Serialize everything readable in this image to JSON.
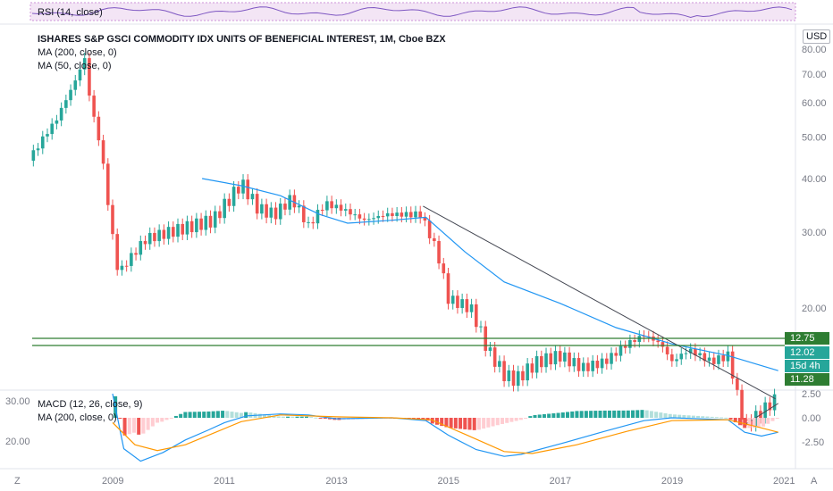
{
  "rsi_label": "RSI (14, close)",
  "main_title": "ISHARES S&P GSCI COMMODITY IDX UNITS OF BENEFICIAL INTEREST, 1M, Cboe BZX",
  "ma200_label": "MA (200, close, 0)",
  "ma50_label": "MA (50, close, 0)",
  "macd_label": "MACD (12, 26, close, 9)",
  "macd_ma_label": "MA (200, close, 0)",
  "currency": "USD",
  "corner_left": "Z",
  "corner_right": "A",
  "tags": [
    {
      "text": "12.75",
      "color": "#2e7d32"
    },
    {
      "text": "12.02",
      "color": "#26a69a"
    },
    {
      "text": "15d 4h",
      "color": "#26a69a"
    },
    {
      "text": "11.28",
      "color": "#2e7d32"
    }
  ],
  "colors": {
    "up": "#26a69a",
    "down": "#ef5350",
    "ma": "#2196f3",
    "signal": "#ff9800",
    "level": "#2e7d32"
  },
  "chart_data": {
    "type": "candlestick",
    "x_ticks": [
      "2009",
      "2011",
      "2013",
      "2015",
      "2017",
      "2019",
      "2021"
    ],
    "price_axis": {
      "ticks": [
        "80.00",
        "70.00",
        "60.00",
        "50.00",
        "40.00",
        "30.00",
        "20.00"
      ],
      "scale": "log"
    },
    "macd_axis": {
      "ticks": [
        "2.50",
        "0.00",
        "-2.50"
      ]
    },
    "macd_left_axis": {
      "ticks": [
        "30.00",
        "20.00"
      ]
    },
    "price_path": [
      [
        2007.5,
        44
      ],
      [
        2008.0,
        55
      ],
      [
        2008.3,
        66
      ],
      [
        2008.5,
        76
      ],
      [
        2008.6,
        60
      ],
      [
        2008.8,
        46
      ],
      [
        2008.95,
        32
      ],
      [
        2009.1,
        24
      ],
      [
        2009.3,
        26
      ],
      [
        2009.6,
        29
      ],
      [
        2010.0,
        30
      ],
      [
        2010.4,
        31
      ],
      [
        2010.8,
        32
      ],
      [
        2011.1,
        36
      ],
      [
        2011.3,
        39
      ],
      [
        2011.6,
        34
      ],
      [
        2011.9,
        33
      ],
      [
        2012.2,
        36
      ],
      [
        2012.5,
        31
      ],
      [
        2012.8,
        35
      ],
      [
        2013.1,
        34
      ],
      [
        2013.5,
        32
      ],
      [
        2013.9,
        33
      ],
      [
        2014.3,
        33
      ],
      [
        2014.5,
        33
      ],
      [
        2014.8,
        27
      ],
      [
        2015.0,
        21
      ],
      [
        2015.4,
        20
      ],
      [
        2015.7,
        16
      ],
      [
        2016.0,
        14
      ],
      [
        2016.2,
        13.6
      ],
      [
        2016.6,
        15
      ],
      [
        2017.0,
        15.5
      ],
      [
        2017.4,
        14.5
      ],
      [
        2017.8,
        15
      ],
      [
        2018.2,
        16.5
      ],
      [
        2018.5,
        17.3
      ],
      [
        2018.8,
        16.5
      ],
      [
        2019.0,
        15
      ],
      [
        2019.3,
        16
      ],
      [
        2019.7,
        15
      ],
      [
        2020.0,
        15.5
      ],
      [
        2020.2,
        12
      ],
      [
        2020.3,
        10.6
      ],
      [
        2020.6,
        11.5
      ],
      [
        2020.9,
        12.4
      ]
    ],
    "ma50": [
      [
        2010.6,
        40
      ],
      [
        2011.3,
        38.5
      ],
      [
        2012.0,
        36.5
      ],
      [
        2012.7,
        33
      ],
      [
        2013.2,
        31.5
      ],
      [
        2014.0,
        32
      ],
      [
        2014.6,
        32.5
      ],
      [
        2015.3,
        27
      ],
      [
        2016.0,
        23
      ],
      [
        2017.0,
        20.5
      ],
      [
        2018.0,
        18
      ],
      [
        2019.0,
        16.5
      ],
      [
        2020.0,
        15.5
      ],
      [
        2020.9,
        14.3
      ]
    ],
    "resistance_line": [
      [
        2014.55,
        34.5
      ],
      [
        2020.85,
        12.3
      ]
    ],
    "support_line": [
      [
        2020.3,
        10.7
      ],
      [
        2020.9,
        12.0
      ]
    ],
    "levels": [
      12.75,
      12.02,
      11.28
    ],
    "macd_line": [
      [
        2009.0,
        2.5
      ],
      [
        2009.2,
        -3.2
      ],
      [
        2009.5,
        -4.5
      ],
      [
        2009.9,
        -3.6
      ],
      [
        2010.3,
        -2.3
      ],
      [
        2010.7,
        -1.3
      ],
      [
        2011.0,
        -0.5
      ],
      [
        2011.4,
        0.2
      ],
      [
        2012.0,
        0.4
      ],
      [
        2012.5,
        0.3
      ],
      [
        2013.0,
        -0.1
      ],
      [
        2014.0,
        0.0
      ],
      [
        2014.6,
        -0.3
      ],
      [
        2015.0,
        -1.8
      ],
      [
        2015.5,
        -3.3
      ],
      [
        2016.0,
        -4.0
      ],
      [
        2016.3,
        -3.8
      ],
      [
        2017.0,
        -2.7
      ],
      [
        2017.8,
        -1.4
      ],
      [
        2018.5,
        -0.3
      ],
      [
        2019.0,
        0.0
      ],
      [
        2020.0,
        -0.2
      ],
      [
        2020.3,
        -1.5
      ],
      [
        2020.6,
        -1.9
      ],
      [
        2020.9,
        -1.5
      ]
    ],
    "signal_line": [
      [
        2009.0,
        -0.5
      ],
      [
        2009.4,
        -2.8
      ],
      [
        2009.8,
        -3.4
      ],
      [
        2010.3,
        -2.8
      ],
      [
        2010.8,
        -1.6
      ],
      [
        2011.3,
        -0.4
      ],
      [
        2012.0,
        0.3
      ],
      [
        2013.0,
        0.1
      ],
      [
        2014.0,
        0.0
      ],
      [
        2014.7,
        -0.2
      ],
      [
        2015.3,
        -1.7
      ],
      [
        2016.0,
        -3.5
      ],
      [
        2016.5,
        -3.7
      ],
      [
        2017.3,
        -2.8
      ],
      [
        2018.2,
        -1.4
      ],
      [
        2019.0,
        -0.3
      ],
      [
        2020.0,
        -0.2
      ],
      [
        2020.5,
        -0.9
      ],
      [
        2020.9,
        -1.5
      ]
    ]
  }
}
